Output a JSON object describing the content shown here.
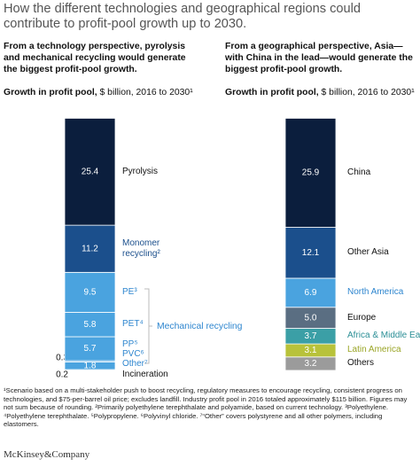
{
  "header": {
    "title": "How the different technologies and geographical regions could contribute to profit-pool growth up to 2030."
  },
  "chart_data": [
    {
      "type": "stacked-bar",
      "subtitle": "From a technology perspective, pyrolysis and mechanical recycling would generate the biggest profit-pool growth.",
      "axis_label_bold": "Growth in profit pool,",
      "axis_label": "$ billion, 2016 to 2030¹",
      "annotation": "Mechanical recycling",
      "annotation_color": "#2e86cf",
      "series": [
        {
          "name": "Incineration",
          "color": "#4aa3df",
          "label_color": "#111",
          "values": [
            0.2
          ]
        },
        {
          "name": "Other⁷",
          "color": "#4aa3df",
          "label_color": "#2e86cf",
          "values": [
            1.8
          ]
        },
        {
          "name": "PVC⁶",
          "color": "#4aa3df",
          "label_color": "#2e86cf",
          "values": [
            0.3
          ]
        },
        {
          "name": "PP⁵",
          "color": "#4aa3df",
          "label_color": "#2e86cf",
          "values": [
            5.7
          ]
        },
        {
          "name": "PET⁴",
          "color": "#4aa3df",
          "label_color": "#2e86cf",
          "values": [
            5.8
          ]
        },
        {
          "name": "PE³",
          "color": "#4aa3df",
          "label_color": "#2e86cf",
          "values": [
            9.5
          ]
        },
        {
          "name": "Monomer recycling²",
          "color": "#1b4f8c",
          "label_color": "#1b4f8c",
          "values": [
            11.2
          ]
        },
        {
          "name": "Pyrolysis",
          "color": "#0b1e3d",
          "label_color": "#111",
          "values": [
            25.4
          ]
        }
      ]
    },
    {
      "type": "stacked-bar",
      "subtitle": "From a geographical perspective, Asia—with China in the lead—would generate the biggest profit-pool growth.",
      "axis_label_bold": "Growth in profit pool,",
      "axis_label": "$ billion, 2016 to 2030¹",
      "series": [
        {
          "name": "Others",
          "color": "#9b9b9b",
          "label_color": "#111",
          "values": [
            3.2
          ],
          "value_labels": [
            "3.2"
          ]
        },
        {
          "name": "Latin America",
          "color": "#b8c23a",
          "label_color": "#9aa526",
          "values": [
            3.1
          ],
          "value_labels": [
            "3.1"
          ]
        },
        {
          "name": "Africa & Middle East",
          "color": "#3b9fa6",
          "label_color": "#2b8f96",
          "values": [
            3.7
          ],
          "value_labels": [
            "3.7"
          ]
        },
        {
          "name": "Europe",
          "color": "#5a6e82",
          "label_color": "#111",
          "values": [
            5.0
          ],
          "value_labels": [
            "5.0"
          ]
        },
        {
          "name": "North America",
          "color": "#4aa3df",
          "label_color": "#2e86cf",
          "values": [
            6.9
          ],
          "value_labels": [
            "6.9"
          ]
        },
        {
          "name": "Other Asia",
          "color": "#1b4f8c",
          "label_color": "#111",
          "values": [
            12.1
          ],
          "value_labels": [
            "12.1"
          ]
        },
        {
          "name": "China",
          "color": "#0b1e3d",
          "label_color": "#111",
          "values": [
            25.9
          ],
          "value_labels": [
            "25.9"
          ]
        }
      ]
    }
  ],
  "footnote": "¹Scenario based on a multi-stakeholder push to boost recycling, regulatory measures to encourage recycling, consistent progress on technologies, and $75-per-barrel oil price; excludes landfill. Industry profit pool in 2016 totaled approximately $115 billion. Figures may not sum because of rounding. ²Primarily polyethylene terephthalate and polyamide, based on current technology. ³Polyethylene. ⁴Polyethylene terephthalate. ⁵Polypropylene. ⁶Polyvinyl chloride. ⁷“Other” covers polystyrene and all other polymers, including elastomers.",
  "source": "McKinsey&Company"
}
